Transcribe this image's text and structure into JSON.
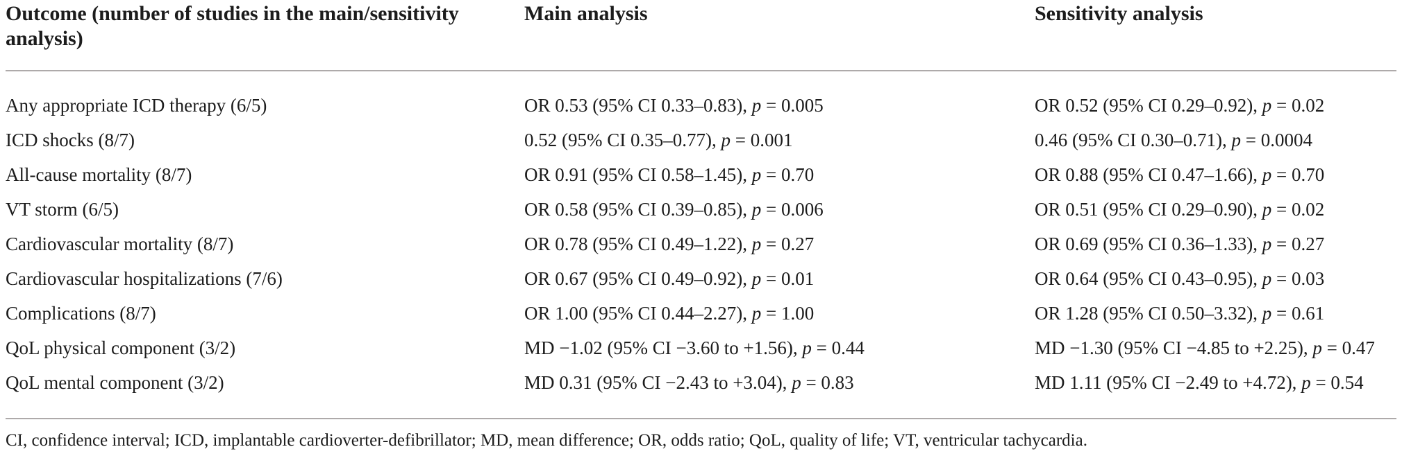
{
  "table": {
    "headers": {
      "outcome": "Outcome (number of studies in the main/sensitivity analysis)",
      "main": "Main analysis",
      "sensitivity": "Sensitivity analysis"
    },
    "rows": [
      {
        "outcome": "Any appropriate ICD therapy (6/5)",
        "main": {
          "pre": "OR 0.53 (95% CI 0.33–0.83), ",
          "p": "p",
          "post": " = 0.005"
        },
        "sensitivity": {
          "pre": "OR 0.52 (95% CI 0.29–0.92), ",
          "p": "p",
          "post": " = 0.02"
        }
      },
      {
        "outcome": "ICD shocks (8/7)",
        "main": {
          "pre": "0.52 (95% CI 0.35–0.77), ",
          "p": "p",
          "post": " = 0.001"
        },
        "sensitivity": {
          "pre": "0.46 (95% CI 0.30–0.71), ",
          "p": "p",
          "post": " = 0.0004"
        }
      },
      {
        "outcome": "All-cause mortality (8/7)",
        "main": {
          "pre": "OR 0.91 (95% CI 0.58–1.45), ",
          "p": "p",
          "post": " = 0.70"
        },
        "sensitivity": {
          "pre": "OR 0.88 (95% CI 0.47–1.66), ",
          "p": "p",
          "post": " = 0.70"
        }
      },
      {
        "outcome": "VT storm (6/5)",
        "main": {
          "pre": "OR 0.58 (95% CI 0.39–0.85), ",
          "p": "p",
          "post": " = 0.006"
        },
        "sensitivity": {
          "pre": "OR 0.51 (95% CI 0.29–0.90), ",
          "p": "p",
          "post": " = 0.02"
        }
      },
      {
        "outcome": "Cardiovascular mortality (8/7)",
        "main": {
          "pre": "OR 0.78 (95% CI 0.49–1.22), ",
          "p": "p",
          "post": " = 0.27"
        },
        "sensitivity": {
          "pre": "OR 0.69 (95% CI 0.36–1.33), ",
          "p": "p",
          "post": " = 0.27"
        }
      },
      {
        "outcome": "Cardiovascular hospitalizations (7/6)",
        "main": {
          "pre": "OR 0.67 (95% CI 0.49–0.92), ",
          "p": "p",
          "post": " = 0.01"
        },
        "sensitivity": {
          "pre": "OR 0.64 (95% CI 0.43–0.95), ",
          "p": "p",
          "post": " = 0.03"
        }
      },
      {
        "outcome": "Complications (8/7)",
        "main": {
          "pre": "OR 1.00 (95% CI 0.44–2.27), ",
          "p": "p",
          "post": " = 1.00"
        },
        "sensitivity": {
          "pre": "OR 1.28 (95% CI 0.50–3.32), ",
          "p": "p",
          "post": " = 0.61"
        }
      },
      {
        "outcome": "QoL physical component (3/2)",
        "main": {
          "pre": "MD −1.02 (95% CI −3.60 to +1.56), ",
          "p": "p",
          "post": " = 0.44"
        },
        "sensitivity": {
          "pre": "MD −1.30 (95% CI −4.85 to +2.25), ",
          "p": "p",
          "post": " = 0.47"
        }
      },
      {
        "outcome": "QoL mental component (3/2)",
        "main": {
          "pre": "MD 0.31 (95% CI −2.43 to +3.04), ",
          "p": "p",
          "post": " = 0.83"
        },
        "sensitivity": {
          "pre": "MD 1.11 (95% CI −2.49 to +4.72), ",
          "p": "p",
          "post": " = 0.54"
        }
      }
    ],
    "footnote": "CI, confidence interval; ICD, implantable cardioverter-defibrillator; MD, mean difference; OR, odds ratio; QoL, quality of life; VT, ventricular tachycardia.",
    "colors": {
      "text": "#1c1c1c",
      "rule": "#aeaaaa",
      "background": "#ffffff"
    }
  }
}
